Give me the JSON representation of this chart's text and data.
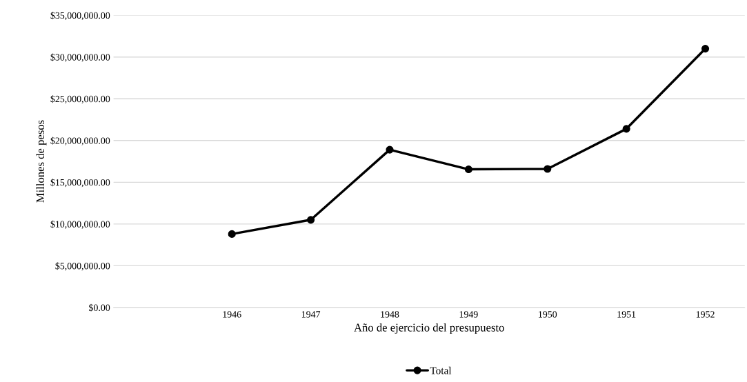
{
  "chart_data": {
    "type": "line",
    "xlabel": "Año de ejercicio del presupuesto",
    "ylabel": "Millones de pesos",
    "categories": [
      null,
      "1946",
      "1947",
      "1948",
      "1949",
      "1950",
      "1951",
      "1952"
    ],
    "series": [
      {
        "name": "Total",
        "color": "#000000",
        "values": [
          null,
          8800000,
          10500000,
          18900000,
          16550000,
          16600000,
          21400000,
          31000000
        ]
      }
    ],
    "ylim": [
      0,
      35000000
    ],
    "yticks": [
      {
        "value": 0,
        "label": "$0.00"
      },
      {
        "value": 5000000,
        "label": "$5,000,000.00"
      },
      {
        "value": 10000000,
        "label": "$10,000,000.00"
      },
      {
        "value": 15000000,
        "label": "$15,000,000.00"
      },
      {
        "value": 20000000,
        "label": "$20,000,000.00"
      },
      {
        "value": 25000000,
        "label": "$25,000,000.00"
      },
      {
        "value": 30000000,
        "label": "$30,000,000.00"
      },
      {
        "value": 35000000,
        "label": "$35,000,000.00"
      }
    ],
    "grid": "y",
    "legend": "bottom",
    "marker": "circle",
    "line_style": "solid"
  }
}
